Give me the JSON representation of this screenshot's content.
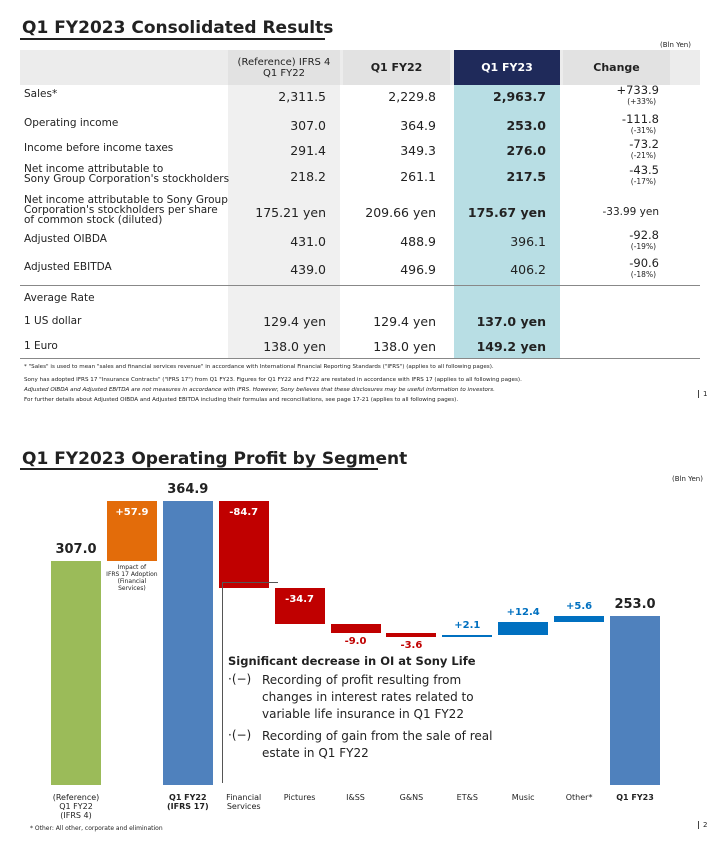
{
  "page1": {
    "title": "Q1 FY2023  Consolidated Results",
    "unit": "(Bln Yen)",
    "table": {
      "header": [
        "(Reference) IFRS 4\nQ1 FY22",
        "Q1 FY22",
        "Q1 FY23",
        "Change"
      ],
      "rows": [
        [
          "Sales*",
          "2,311.5",
          "2,229.8",
          "2,963.7",
          "+733.9",
          "(+33%)"
        ],
        [
          "Operating income",
          "307.0",
          "364.9",
          "253.0",
          "-111.8",
          "(-31%)"
        ],
        [
          "Income before income taxes",
          "291.4",
          "349.3",
          "276.0",
          "-73.2",
          "(-21%)"
        ],
        [
          "Net income attributable to\nSony Group Corporation's stockholders",
          "218.2",
          "261.1",
          "217.5",
          "-43.5",
          "(-17%)"
        ],
        [
          "Net income attributable to Sony Group\nCorporation's stockholders per share\nof common stock (diluted)",
          "175.21 yen",
          "209.66 yen",
          "175.67 yen",
          "-33.99 yen"
        ],
        [
          "Adjusted OIBDA",
          "431.0",
          "488.9",
          "396.1",
          "-92.8",
          "(-19%)"
        ],
        [
          "Adjusted EBITDA",
          "439.0",
          "496.9",
          "406.2",
          "-90.6",
          "(-18%)"
        ]
      ],
      "rate_section": "Average Rate",
      "rate_rows": [
        [
          "1 US dollar",
          "129.4 yen",
          "129.4 yen",
          "137.0 yen"
        ],
        [
          "1 Euro",
          "138.0 yen",
          "138.0 yen",
          "149.2 yen"
        ]
      ]
    },
    "footnotes": [
      "* \"Sales\" is used to mean \"sales and financial services revenue\" in accordance with International Financial Reporting Standards (\"IFRS\") (applies to all following pages).",
      "Sony has adopted IFRS 17 \"Insurance Contracts\" (\"IFRS 17\") from Q1 FY23. Figures for Q1 FY22 and FY22 are restated in accordance with IFRS 17 (applies to all following pages).",
      "Adjusted OIBDA and Adjusted EBITDA are not measures in accordance with IFRS. However, Sony believes that these disclosures may be useful information to investors.",
      "For further details about Adjusted OIBDA and Adjusted EBITDA including their formulas and reconciliations, see page 17-21 (applies to all following pages)."
    ],
    "page": "1"
  },
  "chart_data": {
    "type": "waterfall",
    "title": "Q1 FY2023 Operating Profit by Segment",
    "unit": "(Bln Yen)",
    "categories": [
      "(Reference)\nQ1 FY22\n(IFRS 4)",
      "",
      "Q1 FY22\n(IFRS 17)",
      "Financial\nServices",
      "Pictures",
      "I&SS",
      "G&NS",
      "ET&S",
      "Music",
      "Other*",
      "Q1 FY23"
    ],
    "values": [
      307.0,
      57.9,
      364.9,
      -84.7,
      -34.7,
      -9.0,
      -3.6,
      2.1,
      12.4,
      5.6,
      253.0
    ],
    "value_labels": [
      "307.0",
      "+57.9",
      "364.9",
      "-84.7",
      "-34.7",
      "-9.0",
      "-3.6",
      "+2.1",
      "+12.4",
      "+5.6",
      "253.0"
    ],
    "measure": [
      "absolute",
      "relative",
      "absolute",
      "relative",
      "relative",
      "relative",
      "relative",
      "relative",
      "relative",
      "relative",
      "absolute"
    ],
    "colors": [
      "#9bbb59",
      "#e36c0a",
      "#4f81bd",
      "#c00000",
      "#c00000",
      "#c00000",
      "#c00000",
      "#0070c0",
      "#0070c0",
      "#0070c0",
      "#4f81bd"
    ],
    "ylim": [
      90,
      380
    ],
    "ifrs_note": "Impact of\nIFRS 17 Adoption\n(Financial\nServices)",
    "box_title": "Significant decrease in OI at Sony Life",
    "box_items": [
      {
        "marker": "·(−)",
        "text": "Recording of profit resulting from changes in interest rates related to variable life insurance in Q1 FY22"
      },
      {
        "marker": "·(−)",
        "text": "Recording of gain from the sale of real estate in Q1 FY22"
      }
    ],
    "footnote": "* Other: All other, corporate and elimination",
    "page": "2"
  }
}
